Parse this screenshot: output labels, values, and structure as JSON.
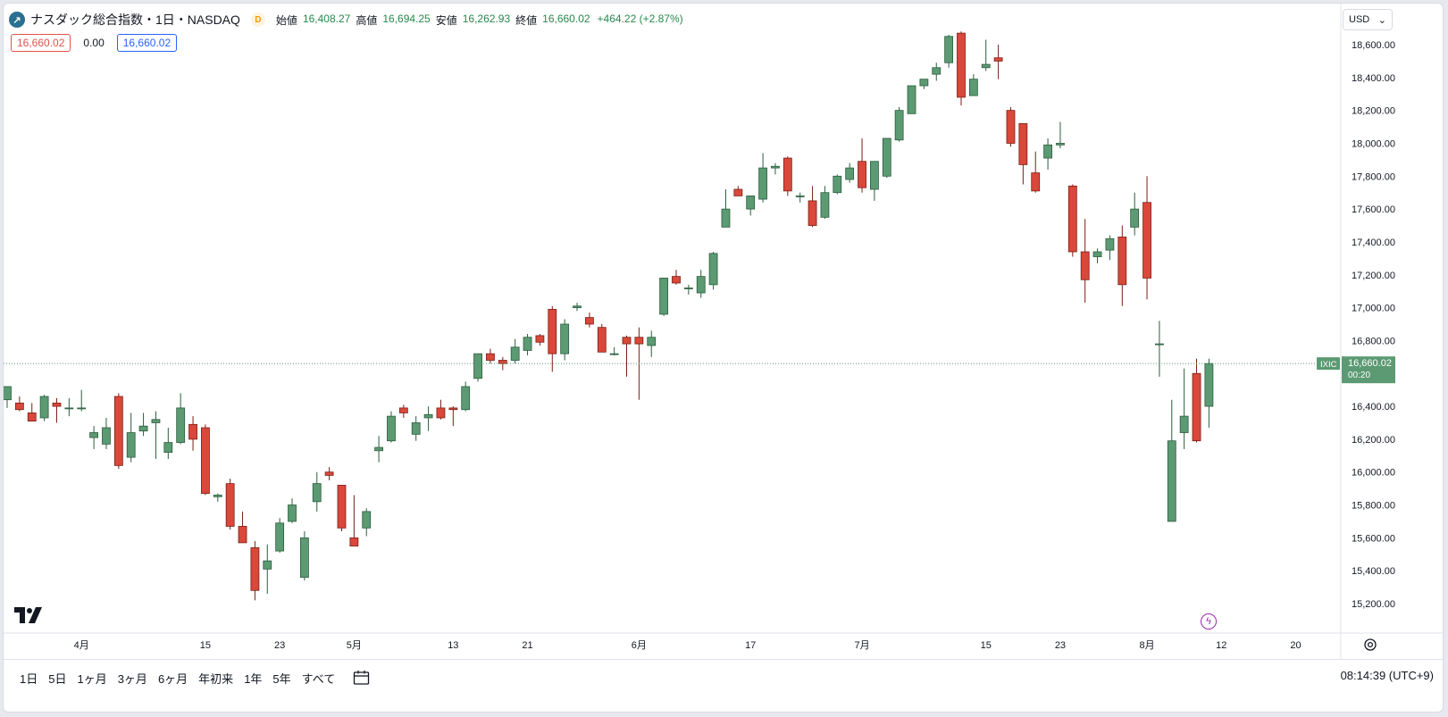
{
  "header": {
    "symbol_title": "ナスダック総合指数・1日・NASDAQ",
    "logo_glyph": "↗",
    "exchange_badge": "D",
    "open_label": "始値",
    "open_value": "16,408.27",
    "high_label": "高値",
    "high_value": "16,694.25",
    "low_label": "安値",
    "low_value": "16,262.93",
    "close_label": "終値",
    "close_value": "16,660.02",
    "change": "+464.22 (+2.87%)"
  },
  "price_boxes": {
    "sell": "16,660.02",
    "spread": "0.00",
    "buy": "16,660.02"
  },
  "currency": {
    "value": "USD",
    "arrow": "⌄"
  },
  "last_price": {
    "symbol": "IXIC",
    "price": "16,660.02",
    "countdown": "00:20"
  },
  "time_ranges": [
    "1日",
    "5日",
    "1ヶ月",
    "3ヶ月",
    "6ヶ月",
    "年初来",
    "1年",
    "5年",
    "すべて"
  ],
  "clock": "08:14:39 (UTC+9)",
  "icons": {
    "flash": "ϟ"
  },
  "colors": {
    "up": "#5b9a72",
    "down": "#d9483a",
    "up_border": "#2c5d3e",
    "down_border": "#7a1e15",
    "accent": "#2962ff",
    "last_price": "#5b9a72"
  },
  "chart_data": {
    "type": "candlestick",
    "x_axis_labels": [
      "4月",
      "15",
      "23",
      "5月",
      "13",
      "21",
      "6月",
      "17",
      "7月",
      "15",
      "23",
      "8月",
      "12",
      "20"
    ],
    "y_axis_labels": [
      "18,600.00",
      "18,400.00",
      "18,200.00",
      "18,000.00",
      "17,800.00",
      "17,600.00",
      "17,400.00",
      "17,200.00",
      "17,000.00",
      "16,800.00",
      "16,400.00",
      "16,200.00",
      "16,000.00",
      "15,800.00",
      "15,600.00",
      "15,400.00",
      "15,200.00"
    ],
    "ylim": [
      15100,
      18750
    ],
    "last_price_value": 16660.02,
    "ohlc": [
      [
        16440,
        16520,
        16390,
        16520
      ],
      [
        16420,
        16460,
        16370,
        16380
      ],
      [
        16360,
        16420,
        16320,
        16310
      ],
      [
        16330,
        16470,
        16310,
        16460
      ],
      [
        16420,
        16450,
        16300,
        16400
      ],
      [
        16390,
        16450,
        16340,
        16390
      ],
      [
        16390,
        16500,
        16370,
        16390
      ],
      [
        16210,
        16280,
        16140,
        16240
      ],
      [
        16170,
        16330,
        16140,
        16270
      ],
      [
        16460,
        16480,
        16020,
        16040
      ],
      [
        16090,
        16360,
        16060,
        16240
      ],
      [
        16250,
        16360,
        16220,
        16280
      ],
      [
        16300,
        16370,
        16080,
        16320
      ],
      [
        16120,
        16270,
        16080,
        16180
      ],
      [
        16180,
        16480,
        16170,
        16390
      ],
      [
        16290,
        16340,
        16130,
        16200
      ],
      [
        16270,
        16290,
        15860,
        15870
      ],
      [
        15850,
        15870,
        15820,
        15860
      ],
      [
        15930,
        15960,
        15650,
        15670
      ],
      [
        15670,
        15760,
        15570,
        15570
      ],
      [
        15540,
        15580,
        15220,
        15280
      ],
      [
        15410,
        15560,
        15260,
        15460
      ],
      [
        15520,
        15720,
        15510,
        15690
      ],
      [
        15700,
        15840,
        15690,
        15800
      ],
      [
        15360,
        15640,
        15340,
        15600
      ],
      [
        15820,
        16000,
        15760,
        15930
      ],
      [
        16000,
        16030,
        15950,
        15980
      ],
      [
        15920,
        15920,
        15640,
        15660
      ],
      [
        15600,
        15860,
        15550,
        15550
      ],
      [
        15660,
        15780,
        15610,
        15760
      ],
      [
        16130,
        16220,
        16060,
        16150
      ],
      [
        16190,
        16370,
        16180,
        16340
      ],
      [
        16390,
        16410,
        16330,
        16360
      ],
      [
        16230,
        16340,
        16190,
        16300
      ],
      [
        16330,
        16400,
        16250,
        16350
      ],
      [
        16390,
        16440,
        16320,
        16330
      ],
      [
        16390,
        16400,
        16280,
        16380
      ],
      [
        16380,
        16550,
        16370,
        16520
      ],
      [
        16570,
        16720,
        16550,
        16720
      ],
      [
        16720,
        16750,
        16660,
        16680
      ],
      [
        16680,
        16700,
        16620,
        16660
      ],
      [
        16680,
        16810,
        16660,
        16760
      ],
      [
        16740,
        16840,
        16710,
        16820
      ],
      [
        16830,
        16840,
        16770,
        16790
      ],
      [
        16990,
        17010,
        16610,
        16720
      ],
      [
        16720,
        16930,
        16680,
        16900
      ],
      [
        17000,
        17030,
        16980,
        17010
      ],
      [
        16940,
        16970,
        16880,
        16900
      ],
      [
        16880,
        16900,
        16730,
        16730
      ],
      [
        16720,
        16760,
        16710,
        16720
      ],
      [
        16820,
        16830,
        16580,
        16780
      ],
      [
        16820,
        16880,
        16440,
        16780
      ],
      [
        16770,
        16860,
        16700,
        16820
      ],
      [
        16960,
        17180,
        16950,
        17180
      ],
      [
        17190,
        17230,
        17140,
        17150
      ],
      [
        17120,
        17140,
        17080,
        17120
      ],
      [
        17090,
        17230,
        17060,
        17190
      ],
      [
        17140,
        17340,
        17110,
        17330
      ],
      [
        17490,
        17720,
        17490,
        17600
      ],
      [
        17720,
        17740,
        17680,
        17680
      ],
      [
        17600,
        17680,
        17560,
        17680
      ],
      [
        17660,
        17940,
        17640,
        17850
      ],
      [
        17850,
        17880,
        17810,
        17860
      ],
      [
        17910,
        17920,
        17680,
        17710
      ],
      [
        17680,
        17700,
        17640,
        17680
      ],
      [
        17650,
        17740,
        17490,
        17500
      ],
      [
        17550,
        17740,
        17540,
        17700
      ],
      [
        17700,
        17810,
        17690,
        17800
      ],
      [
        17780,
        17880,
        17760,
        17850
      ],
      [
        17890,
        18030,
        17700,
        17730
      ],
      [
        17720,
        17890,
        17650,
        17890
      ],
      [
        17800,
        18030,
        17790,
        18030
      ],
      [
        18020,
        18220,
        18010,
        18200
      ],
      [
        18180,
        18350,
        18180,
        18350
      ],
      [
        18350,
        18390,
        18330,
        18390
      ],
      [
        18420,
        18490,
        18380,
        18460
      ],
      [
        18490,
        18660,
        18460,
        18650
      ],
      [
        18670,
        18680,
        18230,
        18280
      ],
      [
        18290,
        18420,
        18290,
        18390
      ],
      [
        18460,
        18630,
        18440,
        18480
      ],
      [
        18520,
        18600,
        18390,
        18500
      ],
      [
        18200,
        18220,
        17980,
        18000
      ],
      [
        18120,
        18120,
        17750,
        17870
      ],
      [
        17820,
        17950,
        17700,
        17710
      ],
      [
        17910,
        18030,
        17840,
        17990
      ],
      [
        17990,
        18130,
        17970,
        18000
      ],
      [
        17740,
        17750,
        17310,
        17340
      ],
      [
        17340,
        17540,
        17030,
        17170
      ],
      [
        17310,
        17360,
        17270,
        17340
      ],
      [
        17350,
        17440,
        17290,
        17420
      ],
      [
        17430,
        17500,
        17010,
        17140
      ],
      [
        17490,
        17700,
        17440,
        17600
      ],
      [
        17640,
        17800,
        17050,
        17180
      ],
      [
        16780,
        16920,
        16580,
        16780
      ],
      [
        15700,
        16440,
        15700,
        16190
      ],
      [
        16240,
        16630,
        16140,
        16340
      ],
      [
        16600,
        16690,
        16180,
        16190
      ],
      [
        16400,
        16690,
        16270,
        16660
      ]
    ]
  }
}
